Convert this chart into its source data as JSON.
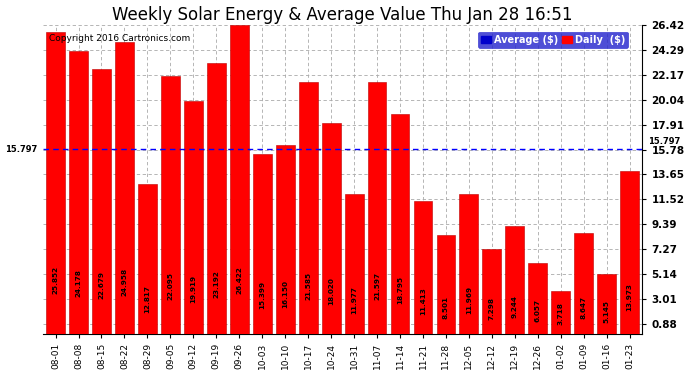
{
  "title": "Weekly Solar Energy & Average Value Thu Jan 28 16:51",
  "copyright": "Copyright 2016 Cartronics.com",
  "categories": [
    "08-01",
    "08-08",
    "08-15",
    "08-22",
    "08-29",
    "09-05",
    "09-12",
    "09-19",
    "09-26",
    "10-03",
    "10-10",
    "10-17",
    "10-24",
    "10-31",
    "11-07",
    "11-14",
    "11-21",
    "11-28",
    "12-05",
    "12-12",
    "12-19",
    "12-26",
    "01-02",
    "01-09",
    "01-16",
    "01-23"
  ],
  "values": [
    25.852,
    24.178,
    22.679,
    24.958,
    12.817,
    22.095,
    19.919,
    23.192,
    26.422,
    15.399,
    16.15,
    21.585,
    18.02,
    11.977,
    21.597,
    18.795,
    11.413,
    8.501,
    11.969,
    7.298,
    9.244,
    6.057,
    3.718,
    8.647,
    5.145,
    13.973
  ],
  "average_value": 15.797,
  "average_label": "15.797",
  "bar_color": "#ff0000",
  "bar_edge_color": "#bb0000",
  "average_line_color": "#0000ff",
  "background_color": "#ffffff",
  "grid_color": "#aaaaaa",
  "title_fontsize": 12,
  "ytick_labels": [
    "0.88",
    "3.01",
    "5.14",
    "7.27",
    "9.39",
    "11.52",
    "13.65",
    "15.78",
    "17.91",
    "20.04",
    "22.17",
    "24.29",
    "26.42"
  ],
  "ytick_values": [
    0.88,
    3.01,
    5.14,
    7.27,
    9.39,
    11.52,
    13.65,
    15.78,
    17.91,
    20.04,
    22.17,
    24.29,
    26.42
  ],
  "ylim_min": 0.0,
  "ylim_max": 26.42,
  "legend_avg_color": "#0000cc",
  "legend_daily_color": "#ff0000",
  "legend_avg_label": "Average ($)",
  "legend_daily_label": "Daily  ($)"
}
